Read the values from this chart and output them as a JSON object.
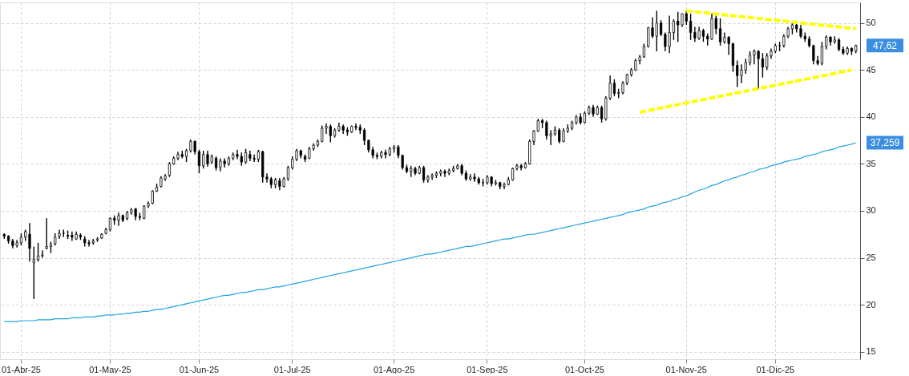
{
  "chart_data": {
    "type": "candlestick",
    "color": "#000000",
    "categories": [
      null,
      null,
      null,
      null,
      "01-Abr-25",
      null,
      null,
      null,
      null,
      null,
      null,
      null,
      null,
      null,
      null,
      null,
      null,
      null,
      null,
      null,
      null,
      null,
      null,
      null,
      null,
      "01-May-25",
      null,
      null,
      null,
      null,
      null,
      null,
      null,
      null,
      null,
      null,
      null,
      null,
      null,
      null,
      null,
      null,
      null,
      null,
      null,
      null,
      "01-Jun-25",
      null,
      null,
      null,
      null,
      null,
      null,
      null,
      null,
      null,
      null,
      null,
      null,
      null,
      null,
      null,
      null,
      null,
      null,
      null,
      null,
      null,
      "01-Jul-25",
      null,
      null,
      null,
      null,
      null,
      null,
      null,
      null,
      null,
      null,
      null,
      null,
      null,
      null,
      null,
      null,
      null,
      null,
      null,
      null,
      null,
      null,
      null,
      "01-Ago-25",
      null,
      null,
      null,
      null,
      null,
      null,
      null,
      null,
      null,
      null,
      null,
      null,
      null,
      null,
      null,
      null,
      null,
      null,
      null,
      null,
      null,
      "01-Sep-25",
      null,
      null,
      null,
      null,
      null,
      null,
      null,
      null,
      null,
      null,
      null,
      null,
      null,
      null,
      null,
      null,
      null,
      null,
      null,
      null,
      null,
      null,
      "01-Oct-25",
      null,
      null,
      null,
      null,
      null,
      null,
      null,
      null,
      null,
      null,
      null,
      null,
      null,
      null,
      null,
      null,
      null,
      null,
      null,
      null,
      null,
      null,
      null,
      "01-Nov-25",
      null,
      null,
      null,
      null,
      null,
      null,
      null,
      null,
      null,
      null,
      null,
      null,
      null,
      null,
      null,
      null,
      null,
      null,
      null,
      null,
      "01-Dic-25",
      null,
      null,
      null,
      null,
      null,
      null,
      null,
      null,
      null,
      null,
      null,
      null,
      null,
      null,
      null,
      null,
      null,
      null,
      null
    ],
    "ohlc": [
      [
        27.5,
        27.6,
        27.0,
        27.3
      ],
      [
        27.3,
        27.4,
        26.5,
        26.8
      ],
      [
        26.8,
        27.0,
        26.0,
        26.3
      ],
      [
        26.3,
        26.9,
        26.1,
        26.6
      ],
      [
        26.6,
        27.6,
        26.3,
        27.2
      ],
      [
        27.2,
        28.0,
        26.8,
        27.8
      ],
      [
        27.5,
        28.7,
        24.6,
        26.0
      ],
      [
        24.5,
        26.2,
        20.6,
        24.8
      ],
      [
        24.8,
        26.6,
        24.6,
        25.2
      ],
      [
        25.2,
        25.8,
        25.0,
        25.3
      ],
      [
        26.0,
        29.2,
        25.9,
        26.2
      ],
      [
        26.2,
        26.7,
        25.5,
        26.4
      ],
      [
        26.5,
        27.6,
        26.3,
        27.2
      ],
      [
        27.3,
        28.0,
        27.0,
        27.6
      ],
      [
        27.6,
        28.0,
        27.2,
        27.6
      ],
      [
        27.4,
        27.9,
        27.0,
        27.3
      ],
      [
        27.4,
        27.8,
        26.8,
        27.2
      ],
      [
        27.0,
        27.8,
        26.9,
        27.5
      ],
      [
        27.4,
        27.6,
        26.9,
        27.2
      ],
      [
        27.0,
        27.3,
        26.2,
        26.6
      ],
      [
        26.6,
        26.9,
        26.2,
        26.5
      ],
      [
        26.6,
        27.0,
        26.4,
        26.8
      ],
      [
        26.9,
        27.2,
        26.7,
        27.0
      ],
      [
        27.1,
        27.6,
        27.0,
        27.5
      ],
      [
        27.6,
        28.2,
        27.5,
        28.0
      ],
      [
        28.0,
        29.3,
        27.8,
        29.2
      ],
      [
        29.2,
        29.5,
        28.5,
        29.0
      ],
      [
        29.0,
        29.8,
        28.4,
        29.5
      ],
      [
        29.5,
        29.6,
        28.8,
        29.0
      ],
      [
        29.2,
        30.0,
        29.0,
        29.8
      ],
      [
        29.8,
        30.3,
        29.6,
        30.1
      ],
      [
        30.2,
        30.3,
        29.0,
        29.4
      ],
      [
        29.4,
        29.8,
        29.0,
        29.3
      ],
      [
        29.2,
        30.6,
        29.1,
        30.5
      ],
      [
        30.5,
        31.0,
        30.3,
        30.8
      ],
      [
        30.8,
        32.2,
        30.7,
        32.1
      ],
      [
        32.1,
        32.9,
        32.0,
        32.5
      ],
      [
        32.6,
        33.7,
        32.5,
        33.5
      ],
      [
        33.4,
        33.9,
        33.2,
        33.7
      ],
      [
        33.8,
        35.2,
        33.6,
        35.0
      ],
      [
        35.0,
        35.8,
        34.9,
        35.6
      ],
      [
        35.6,
        36.3,
        35.4,
        36.0
      ],
      [
        36.0,
        36.4,
        35.6,
        35.8
      ],
      [
        35.8,
        36.6,
        35.2,
        36.4
      ],
      [
        36.4,
        37.6,
        36.2,
        37.4
      ],
      [
        37.4,
        37.5,
        36.0,
        36.3
      ],
      [
        36.3,
        36.5,
        34.0,
        34.8
      ],
      [
        34.8,
        36.4,
        34.5,
        36.0
      ],
      [
        36.0,
        36.4,
        34.7,
        35.0
      ],
      [
        35.2,
        36.0,
        35.0,
        35.8
      ],
      [
        35.6,
        35.8,
        34.3,
        34.6
      ],
      [
        34.6,
        35.6,
        34.2,
        35.3
      ],
      [
        35.3,
        35.6,
        34.6,
        35.0
      ],
      [
        35.0,
        35.8,
        34.8,
        35.6
      ],
      [
        35.6,
        36.2,
        35.4,
        36.0
      ],
      [
        36.0,
        36.5,
        35.5,
        35.8
      ],
      [
        35.8,
        36.2,
        34.8,
        35.2
      ],
      [
        35.2,
        36.6,
        35.0,
        36.2
      ],
      [
        36.0,
        36.4,
        35.3,
        35.6
      ],
      [
        35.6,
        36.0,
        35.2,
        35.5
      ],
      [
        35.5,
        36.5,
        35.2,
        36.3
      ],
      [
        36.3,
        36.4,
        33.0,
        33.6
      ],
      [
        33.6,
        34.0,
        33.0,
        33.4
      ],
      [
        33.4,
        33.6,
        32.4,
        32.8
      ],
      [
        32.8,
        33.5,
        32.4,
        33.3
      ],
      [
        33.2,
        33.5,
        32.2,
        32.6
      ],
      [
        32.6,
        33.6,
        32.5,
        33.4
      ],
      [
        33.4,
        34.8,
        33.2,
        34.6
      ],
      [
        34.6,
        35.8,
        34.4,
        35.5
      ],
      [
        35.5,
        36.6,
        35.3,
        36.4
      ],
      [
        36.4,
        36.5,
        35.6,
        35.9
      ],
      [
        35.8,
        36.0,
        35.2,
        35.5
      ],
      [
        35.6,
        36.8,
        35.5,
        36.6
      ],
      [
        36.6,
        37.2,
        36.4,
        37.0
      ],
      [
        37.0,
        37.6,
        36.8,
        37.4
      ],
      [
        37.4,
        39.1,
        37.3,
        38.8
      ],
      [
        38.8,
        39.3,
        38.2,
        39.0
      ],
      [
        39.0,
        39.2,
        37.3,
        38.0
      ],
      [
        38.0,
        38.8,
        37.8,
        38.6
      ],
      [
        38.6,
        39.4,
        38.4,
        39.0
      ],
      [
        39.0,
        39.2,
        38.2,
        38.6
      ],
      [
        38.6,
        38.9,
        38.0,
        38.4
      ],
      [
        38.4,
        39.1,
        38.3,
        39.0
      ],
      [
        39.0,
        39.3,
        38.6,
        38.9
      ],
      [
        38.9,
        39.2,
        38.2,
        38.6
      ],
      [
        38.6,
        38.8,
        37.0,
        37.5
      ],
      [
        37.5,
        37.6,
        36.2,
        36.5
      ],
      [
        36.5,
        36.8,
        35.6,
        35.9
      ],
      [
        35.9,
        36.2,
        35.5,
        35.8
      ],
      [
        35.8,
        36.4,
        35.6,
        36.2
      ],
      [
        36.2,
        36.5,
        35.6,
        36.0
      ],
      [
        36.0,
        36.8,
        35.8,
        36.6
      ],
      [
        36.6,
        37.0,
        36.2,
        36.8
      ],
      [
        36.8,
        37.0,
        35.6,
        35.9
      ],
      [
        35.9,
        36.0,
        34.4,
        34.6
      ],
      [
        34.6,
        34.9,
        34.0,
        34.2
      ],
      [
        34.2,
        34.8,
        33.6,
        34.5
      ],
      [
        34.5,
        34.7,
        33.8,
        34.0
      ],
      [
        34.0,
        34.8,
        33.9,
        34.6
      ],
      [
        34.6,
        34.8,
        33.0,
        33.3
      ],
      [
        33.3,
        33.8,
        33.0,
        33.6
      ],
      [
        33.6,
        34.0,
        33.3,
        33.8
      ],
      [
        33.8,
        34.2,
        33.5,
        34.0
      ],
      [
        34.0,
        34.4,
        33.7,
        34.2
      ],
      [
        34.2,
        34.4,
        33.6,
        34.0
      ],
      [
        34.0,
        34.5,
        33.8,
        34.3
      ],
      [
        34.3,
        34.8,
        34.1,
        34.5
      ],
      [
        34.5,
        35.0,
        34.4,
        34.8
      ],
      [
        34.8,
        35.0,
        33.8,
        34.0
      ],
      [
        34.0,
        34.3,
        33.2,
        33.4
      ],
      [
        33.4,
        33.9,
        33.2,
        33.6
      ],
      [
        33.6,
        34.0,
        33.1,
        33.4
      ],
      [
        33.4,
        33.6,
        32.8,
        33.0
      ],
      [
        33.0,
        33.4,
        32.6,
        33.0
      ],
      [
        33.0,
        33.8,
        32.8,
        33.6
      ],
      [
        33.6,
        33.7,
        32.6,
        32.9
      ],
      [
        32.9,
        33.3,
        32.7,
        33.0
      ],
      [
        33.0,
        33.1,
        32.3,
        32.6
      ],
      [
        32.6,
        33.0,
        32.3,
        32.8
      ],
      [
        32.8,
        33.6,
        32.7,
        33.3
      ],
      [
        33.3,
        34.6,
        33.2,
        34.5
      ],
      [
        34.5,
        35.0,
        34.3,
        34.8
      ],
      [
        34.8,
        35.0,
        34.3,
        34.6
      ],
      [
        34.6,
        35.2,
        34.5,
        35.0
      ],
      [
        35.0,
        37.6,
        34.9,
        37.4
      ],
      [
        37.4,
        38.6,
        37.0,
        38.5
      ],
      [
        38.5,
        39.8,
        38.4,
        39.6
      ],
      [
        39.6,
        39.8,
        38.8,
        39.4
      ],
      [
        39.4,
        39.6,
        37.6,
        38.0
      ],
      [
        38.0,
        38.6,
        37.0,
        38.2
      ],
      [
        38.2,
        39.0,
        38.0,
        38.6
      ],
      [
        38.6,
        38.8,
        37.2,
        37.4
      ],
      [
        37.4,
        38.8,
        37.3,
        38.5
      ],
      [
        38.5,
        39.2,
        38.3,
        38.8
      ],
      [
        38.8,
        39.6,
        38.6,
        39.4
      ],
      [
        39.4,
        40.2,
        39.2,
        40.0
      ],
      [
        40.0,
        40.4,
        39.2,
        39.4
      ],
      [
        39.4,
        40.6,
        39.3,
        40.4
      ],
      [
        40.4,
        41.2,
        40.2,
        41.0
      ],
      [
        41.0,
        41.3,
        40.0,
        40.3
      ],
      [
        40.3,
        41.2,
        40.2,
        41.0
      ],
      [
        41.0,
        41.2,
        39.4,
        39.8
      ],
      [
        39.8,
        42.2,
        39.6,
        42.0
      ],
      [
        42.0,
        44.4,
        41.8,
        43.6
      ],
      [
        43.6,
        44.0,
        42.2,
        42.5
      ],
      [
        42.5,
        43.0,
        42.0,
        42.6
      ],
      [
        42.6,
        43.8,
        42.4,
        43.6
      ],
      [
        43.6,
        44.6,
        43.4,
        44.5
      ],
      [
        44.5,
        45.2,
        44.3,
        45.0
      ],
      [
        45.0,
        46.2,
        44.9,
        46.0
      ],
      [
        46.0,
        46.6,
        45.6,
        46.4
      ],
      [
        46.4,
        47.8,
        46.3,
        47.5
      ],
      [
        47.5,
        49.6,
        47.4,
        49.5
      ],
      [
        49.5,
        50.6,
        48.4,
        48.6
      ],
      [
        48.6,
        51.3,
        47.0,
        50.0
      ],
      [
        50.0,
        50.3,
        48.6,
        48.8
      ],
      [
        48.8,
        49.0,
        47.0,
        47.5
      ],
      [
        47.5,
        50.8,
        46.8,
        49.0
      ],
      [
        49.0,
        50.4,
        48.2,
        50.2
      ],
      [
        50.2,
        51.2,
        48.0,
        49.8
      ],
      [
        49.8,
        51.0,
        49.6,
        51.0
      ],
      [
        51.0,
        51.3,
        49.8,
        50.2
      ],
      [
        50.2,
        51.0,
        48.2,
        49.0
      ],
      [
        49.0,
        49.6,
        48.0,
        48.4
      ],
      [
        48.4,
        49.6,
        48.2,
        49.2
      ],
      [
        49.2,
        49.4,
        48.0,
        48.6
      ],
      [
        48.6,
        48.9,
        47.6,
        48.3
      ],
      [
        48.3,
        51.0,
        48.2,
        50.5
      ],
      [
        50.5,
        50.8,
        48.8,
        49.4
      ],
      [
        49.4,
        50.5,
        47.6,
        48.0
      ],
      [
        48.0,
        49.0,
        47.8,
        48.5
      ],
      [
        48.5,
        48.6,
        46.6,
        47.8
      ],
      [
        47.8,
        47.9,
        44.8,
        45.5
      ],
      [
        45.5,
        46.0,
        43.2,
        44.4
      ],
      [
        44.4,
        45.6,
        43.6,
        45.0
      ],
      [
        45.0,
        46.2,
        44.6,
        45.8
      ],
      [
        45.8,
        47.0,
        45.5,
        46.6
      ],
      [
        46.6,
        47.2,
        45.6,
        47.0
      ],
      [
        47.0,
        47.1,
        43.0,
        46.2
      ],
      [
        46.2,
        46.8,
        44.2,
        45.3
      ],
      [
        45.3,
        46.8,
        45.0,
        46.5
      ],
      [
        46.5,
        47.3,
        46.2,
        47.0
      ],
      [
        47.0,
        47.8,
        46.8,
        47.6
      ],
      [
        47.6,
        48.0,
        47.0,
        47.6
      ],
      [
        47.6,
        48.8,
        47.4,
        48.6
      ],
      [
        48.6,
        49.6,
        48.4,
        49.4
      ],
      [
        49.4,
        50.0,
        48.8,
        49.8
      ],
      [
        49.8,
        50.0,
        49.0,
        49.4
      ],
      [
        49.4,
        49.8,
        48.4,
        48.6
      ],
      [
        48.6,
        49.0,
        48.0,
        48.3
      ],
      [
        48.3,
        48.6,
        47.4,
        47.6
      ],
      [
        47.6,
        47.7,
        45.6,
        46.0
      ],
      [
        46.0,
        46.5,
        45.5,
        45.7
      ],
      [
        45.7,
        48.0,
        45.5,
        47.5
      ],
      [
        47.5,
        48.7,
        47.2,
        48.5
      ],
      [
        48.5,
        48.6,
        47.6,
        48.0
      ],
      [
        48.0,
        48.6,
        47.8,
        48.2
      ],
      [
        48.2,
        48.4,
        47.0,
        47.2
      ],
      [
        47.2,
        47.5,
        46.6,
        46.8
      ],
      [
        46.8,
        47.5,
        46.6,
        47.3
      ],
      [
        47.3,
        47.4,
        46.6,
        47.0
      ],
      [
        47.0,
        47.7,
        46.8,
        47.62
      ]
    ],
    "series": [
      {
        "type": "line",
        "color": "#1fa2e0",
        "line_style": "solid",
        "values": [
          18.2,
          18.2,
          18.2,
          18.2,
          18.3,
          18.3,
          18.3,
          18.3,
          18.4,
          18.4,
          18.4,
          18.4,
          18.5,
          18.5,
          18.5,
          18.5,
          18.6,
          18.6,
          18.6,
          18.7,
          18.7,
          18.7,
          18.8,
          18.8,
          18.9,
          18.9,
          18.9,
          19.0,
          19.0,
          19.1,
          19.1,
          19.2,
          19.2,
          19.3,
          19.3,
          19.4,
          19.5,
          19.5,
          19.6,
          19.7,
          19.8,
          19.9,
          20.0,
          20.1,
          20.2,
          20.3,
          20.4,
          20.5,
          20.6,
          20.7,
          20.8,
          20.9,
          21.0,
          21.0,
          21.1,
          21.2,
          21.3,
          21.3,
          21.4,
          21.5,
          21.6,
          21.6,
          21.7,
          21.8,
          21.9,
          21.9,
          22.0,
          22.1,
          22.2,
          22.3,
          22.4,
          22.5,
          22.6,
          22.7,
          22.8,
          22.9,
          23.0,
          23.1,
          23.2,
          23.3,
          23.4,
          23.5,
          23.6,
          23.7,
          23.8,
          23.9,
          24.0,
          24.1,
          24.2,
          24.3,
          24.4,
          24.5,
          24.6,
          24.7,
          24.8,
          24.9,
          25.0,
          25.1,
          25.2,
          25.3,
          25.4,
          25.4,
          25.5,
          25.6,
          25.7,
          25.8,
          25.9,
          26.0,
          26.1,
          26.2,
          26.2,
          26.3,
          26.4,
          26.5,
          26.6,
          26.7,
          26.8,
          26.9,
          27.0,
          27.0,
          27.1,
          27.2,
          27.3,
          27.4,
          27.5,
          27.5,
          27.6,
          27.7,
          27.8,
          27.9,
          28.0,
          28.1,
          28.2,
          28.3,
          28.4,
          28.5,
          28.6,
          28.7,
          28.8,
          28.9,
          29.0,
          29.1,
          29.2,
          29.3,
          29.4,
          29.5,
          29.6,
          29.8,
          29.9,
          30.0,
          30.1,
          30.2,
          30.4,
          30.5,
          30.6,
          30.8,
          30.9,
          31.0,
          31.2,
          31.3,
          31.5,
          31.6,
          31.8,
          32.0,
          32.2,
          32.3,
          32.5,
          32.7,
          32.8,
          33.0,
          33.2,
          33.3,
          33.5,
          33.6,
          33.8,
          33.9,
          34.1,
          34.2,
          34.4,
          34.5,
          34.6,
          34.8,
          34.9,
          35.0,
          35.2,
          35.3,
          35.4,
          35.5,
          35.6,
          35.8,
          35.9,
          36.0,
          36.1,
          36.3,
          36.4,
          36.5,
          36.6,
          36.8,
          36.9,
          37.0,
          37.1,
          37.259
        ]
      },
      {
        "type": "line",
        "color": "#ffff00",
        "line_style": "dashed",
        "values": [
          null,
          null,
          null,
          null,
          null,
          null,
          null,
          null,
          null,
          null,
          null,
          null,
          null,
          null,
          null,
          null,
          null,
          null,
          null,
          null,
          null,
          null,
          null,
          null,
          null,
          null,
          null,
          null,
          null,
          null,
          null,
          null,
          null,
          null,
          null,
          null,
          null,
          null,
          null,
          null,
          null,
          null,
          null,
          null,
          null,
          null,
          null,
          null,
          null,
          null,
          null,
          null,
          null,
          null,
          null,
          null,
          null,
          null,
          null,
          null,
          null,
          null,
          null,
          null,
          null,
          null,
          null,
          null,
          null,
          null,
          null,
          null,
          null,
          null,
          null,
          null,
          null,
          null,
          null,
          null,
          null,
          null,
          null,
          null,
          null,
          null,
          null,
          null,
          null,
          null,
          null,
          null,
          null,
          null,
          null,
          null,
          null,
          null,
          null,
          null,
          null,
          null,
          null,
          null,
          null,
          null,
          null,
          null,
          null,
          null,
          null,
          null,
          null,
          null,
          null,
          null,
          null,
          null,
          null,
          null,
          null,
          null,
          null,
          null,
          null,
          null,
          null,
          null,
          null,
          null,
          null,
          null,
          null,
          null,
          null,
          null,
          null,
          null,
          null,
          null,
          null,
          null,
          null,
          null,
          null,
          null,
          null,
          null,
          null,
          null,
          null,
          null,
          null,
          null,
          null,
          null,
          null,
          null,
          null,
          null,
          null,
          51.3,
          null,
          null,
          null,
          null,
          null,
          null,
          null,
          null,
          null,
          null,
          null,
          null,
          null,
          null,
          null,
          null,
          null,
          null,
          null,
          null,
          null,
          null,
          null,
          null,
          null,
          null,
          null,
          null,
          null,
          null,
          null,
          null,
          null,
          null,
          null,
          null,
          null,
          null,
          null,
          49.4
        ]
      },
      {
        "type": "line",
        "color": "#ffff00",
        "line_style": "dashed",
        "values": [
          null,
          null,
          null,
          null,
          null,
          null,
          null,
          null,
          null,
          null,
          null,
          null,
          null,
          null,
          null,
          null,
          null,
          null,
          null,
          null,
          null,
          null,
          null,
          null,
          null,
          null,
          null,
          null,
          null,
          null,
          null,
          null,
          null,
          null,
          null,
          null,
          null,
          null,
          null,
          null,
          null,
          null,
          null,
          null,
          null,
          null,
          null,
          null,
          null,
          null,
          null,
          null,
          null,
          null,
          null,
          null,
          null,
          null,
          null,
          null,
          null,
          null,
          null,
          null,
          null,
          null,
          null,
          null,
          null,
          null,
          null,
          null,
          null,
          null,
          null,
          null,
          null,
          null,
          null,
          null,
          null,
          null,
          null,
          null,
          null,
          null,
          null,
          null,
          null,
          null,
          null,
          null,
          null,
          null,
          null,
          null,
          null,
          null,
          null,
          null,
          null,
          null,
          null,
          null,
          null,
          null,
          null,
          null,
          null,
          null,
          null,
          null,
          null,
          null,
          null,
          null,
          null,
          null,
          null,
          null,
          null,
          null,
          null,
          null,
          null,
          null,
          null,
          null,
          null,
          null,
          null,
          null,
          null,
          null,
          null,
          null,
          null,
          null,
          null,
          null,
          null,
          null,
          null,
          null,
          null,
          null,
          null,
          null,
          null,
          null,
          40.5,
          null,
          null,
          null,
          null,
          null,
          null,
          null,
          null,
          null,
          null,
          null,
          null,
          null,
          null,
          null,
          null,
          null,
          null,
          null,
          null,
          null,
          null,
          null,
          null,
          null,
          null,
          null,
          null,
          null,
          null,
          null,
          null,
          null,
          null,
          null,
          null,
          null,
          null,
          null,
          null,
          null,
          null,
          null,
          null,
          null,
          null,
          null,
          null,
          null,
          45.0,
          null
        ]
      }
    ],
    "ylim": [
      14.2,
      52.2
    ],
    "yticks": [
      15,
      20,
      25,
      30,
      35,
      40,
      45,
      50
    ],
    "grid": true,
    "annotations": [
      "47,62",
      "37,259"
    ]
  }
}
